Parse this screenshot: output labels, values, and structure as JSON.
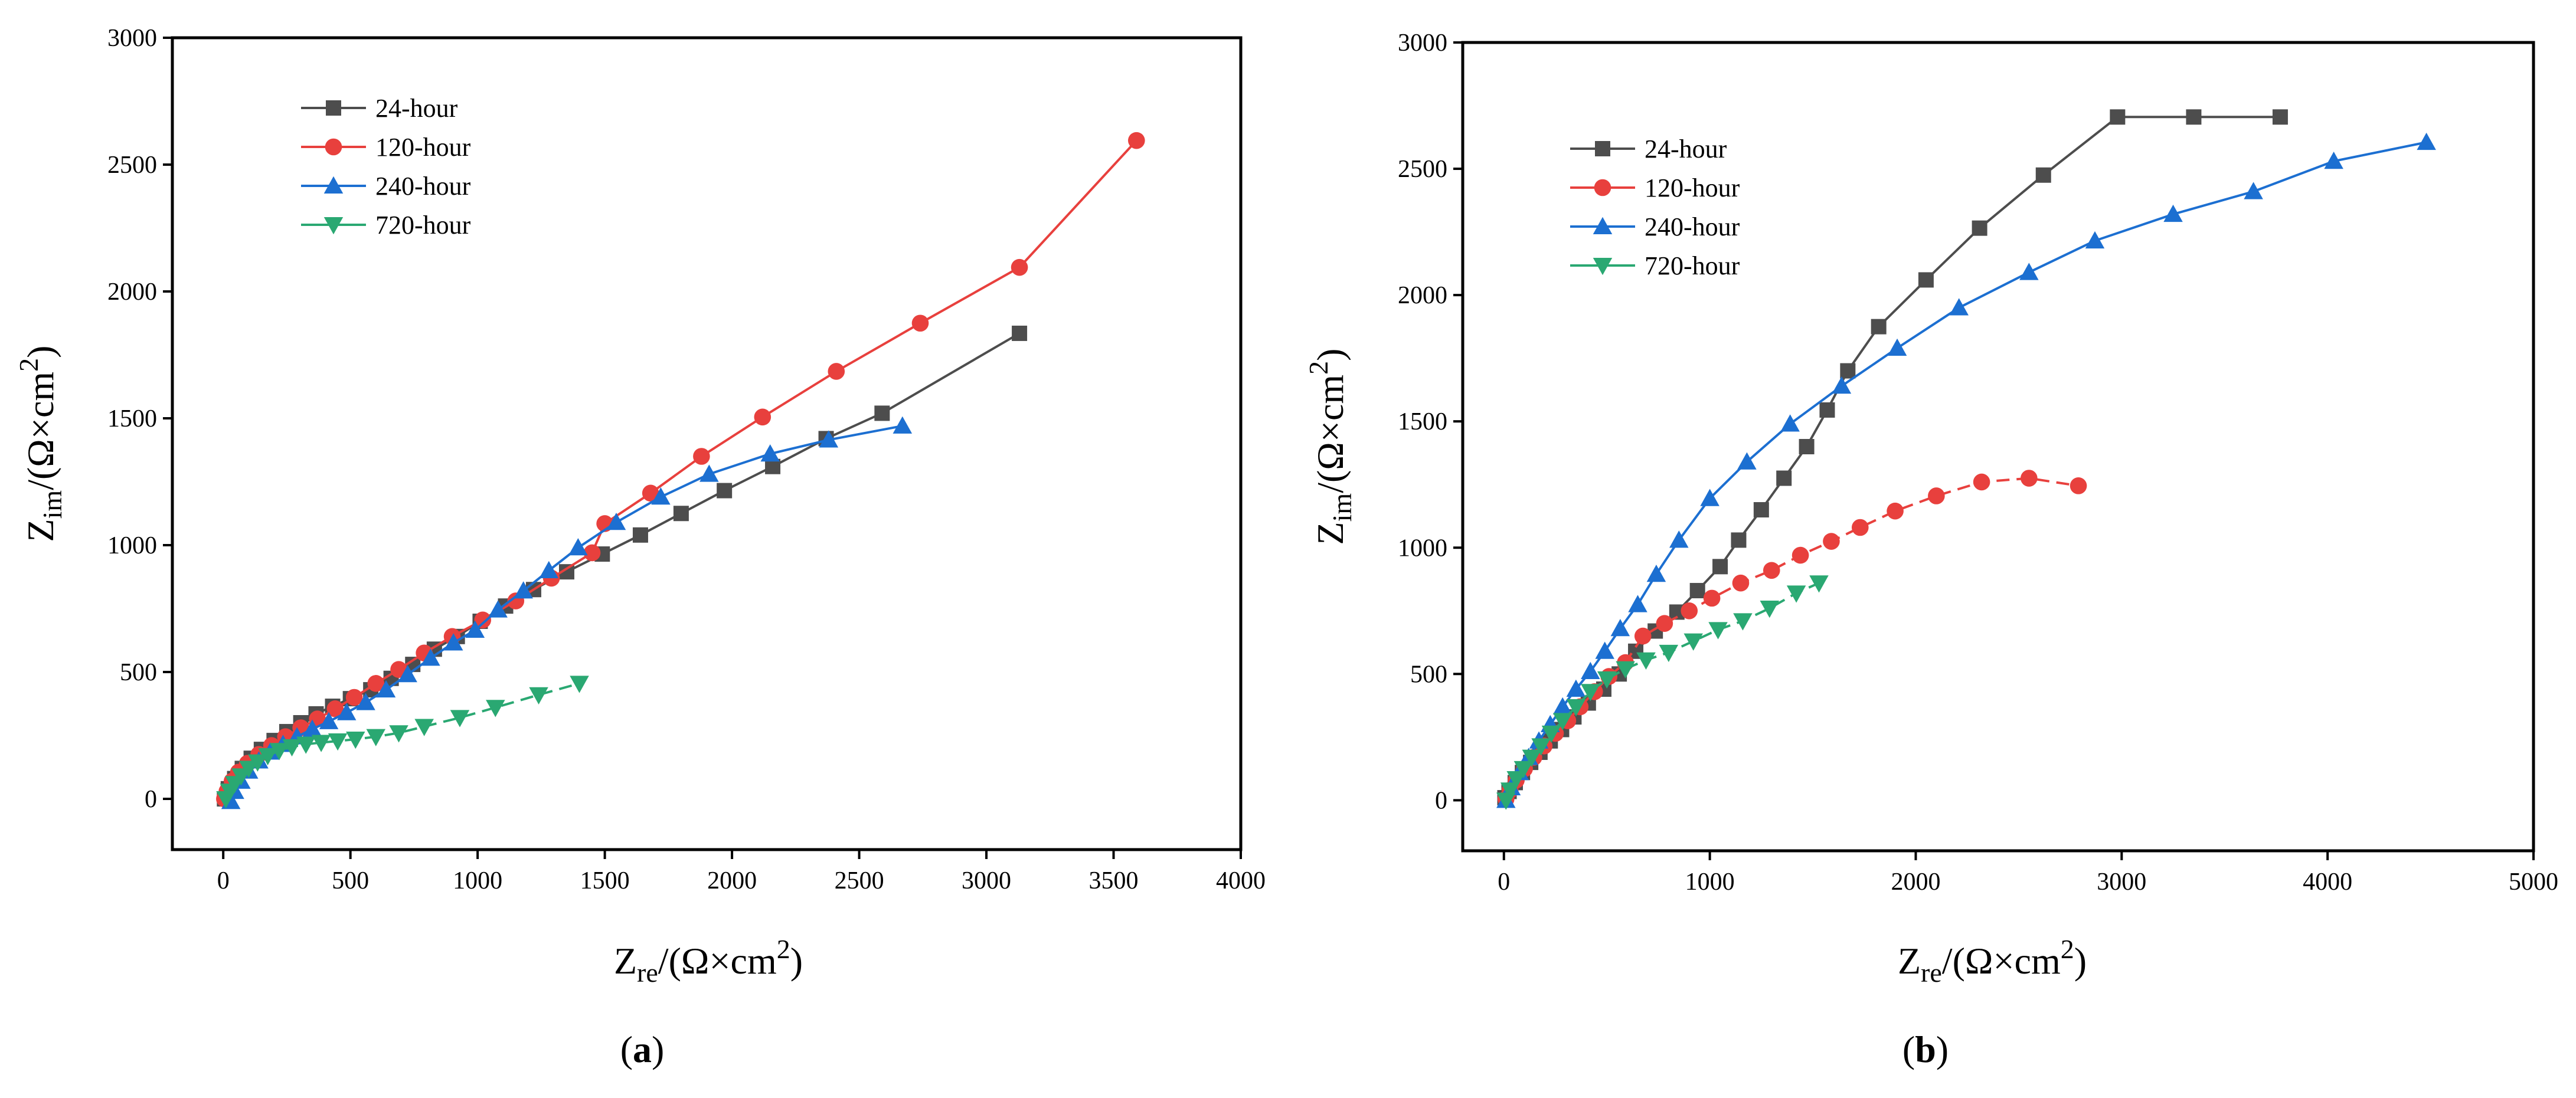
{
  "chart_data": [
    {
      "type": "line",
      "panel_label": "a",
      "xlabel": {
        "main": "Z",
        "sub": "re",
        "unit_pre": "/(Ω×cm",
        "sup": "2",
        "unit_post": ")"
      },
      "ylabel": {
        "main": "Z",
        "sub": "im",
        "unit_pre": "/(Ω×cm",
        "sup": "2",
        "unit_post": ")"
      },
      "xlim": [
        -200,
        4000
      ],
      "ylim": [
        -200,
        3000
      ],
      "xticks": [
        0,
        500,
        1000,
        1500,
        2000,
        2500,
        3000,
        3500,
        4000
      ],
      "yticks": [
        0,
        500,
        1000,
        1500,
        2000,
        2500,
        3000
      ],
      "legend_position": "top-left",
      "series": [
        {
          "name": "24-hour",
          "marker": "square",
          "color": "#4d4d4d",
          "dashed": false,
          "x": [
            5,
            20,
            45,
            75,
            110,
            150,
            200,
            250,
            305,
            365,
            430,
            500,
            580,
            660,
            745,
            830,
            920,
            1010,
            1110,
            1220,
            1350,
            1490,
            1640,
            1800,
            1970,
            2160,
            2370,
            2590,
            3130
          ],
          "y": [
            0,
            40,
            80,
            120,
            160,
            195,
            230,
            265,
            300,
            335,
            365,
            395,
            430,
            475,
            530,
            590,
            640,
            700,
            760,
            825,
            895,
            965,
            1040,
            1125,
            1215,
            1310,
            1420,
            1520,
            1835
          ]
        },
        {
          "name": "120-hour",
          "marker": "circle",
          "color": "#e8403d",
          "dashed": false,
          "x": [
            5,
            15,
            35,
            60,
            95,
            140,
            190,
            245,
            305,
            370,
            440,
            515,
            600,
            690,
            790,
            900,
            1020,
            1150,
            1290,
            1450,
            1500,
            1680,
            1880,
            2120,
            2410,
            2740,
            3130,
            3590
          ],
          "y": [
            0,
            30,
            70,
            105,
            140,
            175,
            210,
            245,
            280,
            315,
            355,
            400,
            455,
            510,
            575,
            640,
            705,
            780,
            870,
            970,
            1085,
            1205,
            1350,
            1505,
            1685,
            1875,
            2095,
            2595
          ]
        },
        {
          "name": "240-hour",
          "marker": "triangle-up",
          "color": "#1c6fd1",
          "dashed": false,
          "x": [
            30,
            45,
            70,
            100,
            140,
            185,
            235,
            290,
            350,
            415,
            485,
            560,
            640,
            725,
            815,
            905,
            990,
            1080,
            1180,
            1280,
            1395,
            1545,
            1720,
            1910,
            2150,
            2380,
            2670
          ],
          "y": [
            -10,
            30,
            70,
            110,
            150,
            185,
            215,
            245,
            275,
            305,
            340,
            380,
            430,
            490,
            555,
            615,
            665,
            745,
            820,
            900,
            990,
            1090,
            1190,
            1280,
            1360,
            1415,
            1470
          ]
        },
        {
          "name": "720-hour",
          "marker": "triangle-down",
          "color": "#2aa872",
          "dashed": true,
          "x": [
            10,
            25,
            45,
            70,
            100,
            135,
            175,
            220,
            270,
            325,
            385,
            450,
            520,
            600,
            690,
            790,
            930,
            1070,
            1240,
            1400
          ],
          "y": [
            0,
            30,
            60,
            90,
            120,
            145,
            170,
            190,
            205,
            215,
            222,
            228,
            235,
            245,
            260,
            285,
            320,
            360,
            410,
            455
          ]
        }
      ]
    },
    {
      "type": "line",
      "panel_label": "b",
      "xlabel": {
        "main": "Z",
        "sub": "re",
        "unit_pre": "/(Ω×cm",
        "sup": "2",
        "unit_post": ")"
      },
      "ylabel": {
        "main": "Z",
        "sub": "im",
        "unit_pre": "/(Ω×cm",
        "sup": "2",
        "unit_post": ")"
      },
      "xlim": [
        -200,
        5000
      ],
      "ylim": [
        -200,
        3000
      ],
      "xticks": [
        0,
        1000,
        2000,
        3000,
        4000,
        5000
      ],
      "yticks": [
        0,
        500,
        1000,
        1500,
        2000,
        2500,
        3000
      ],
      "legend_position": "top-left",
      "series": [
        {
          "name": "24-hour",
          "marker": "square",
          "color": "#4d4d4d",
          "dashed": false,
          "x": [
            5,
            25,
            55,
            90,
            130,
            175,
            225,
            280,
            340,
            410,
            485,
            560,
            640,
            735,
            840,
            940,
            1050,
            1140,
            1250,
            1360,
            1470,
            1570,
            1670,
            1820,
            2050,
            2310,
            2620,
            2980,
            3350,
            3770
          ],
          "y": [
            10,
            35,
            70,
            110,
            150,
            190,
            235,
            280,
            330,
            385,
            440,
            500,
            590,
            670,
            745,
            830,
            925,
            1030,
            1150,
            1275,
            1400,
            1545,
            1700,
            1875,
            2060,
            2265,
            2475,
            2705,
            2705,
            2705
          ]
        },
        {
          "name": "120-hour",
          "marker": "circle",
          "color": "#e8403d",
          "dashed": true,
          "x": [
            10,
            30,
            60,
            100,
            145,
            195,
            250,
            310,
            370,
            440,
            510,
            590,
            675,
            780,
            900,
            1010,
            1150,
            1300,
            1440,
            1590,
            1730,
            1900,
            2100,
            2320,
            2550,
            2790
          ],
          "y": [
            5,
            40,
            80,
            125,
            170,
            215,
            265,
            315,
            370,
            430,
            490,
            545,
            650,
            700,
            750,
            800,
            860,
            910,
            970,
            1025,
            1080,
            1145,
            1205,
            1260,
            1275,
            1245
          ]
        },
        {
          "name": "240-hour",
          "marker": "triangle-up",
          "color": "#1c6fd1",
          "dashed": false,
          "x": [
            10,
            35,
            75,
            120,
            170,
            225,
            285,
            350,
            420,
            490,
            565,
            650,
            740,
            850,
            1000,
            1180,
            1390,
            1640,
            1910,
            2210,
            2550,
            2870,
            3250,
            3640,
            4030,
            4480
          ],
          "y": [
            0,
            50,
            110,
            170,
            235,
            300,
            370,
            440,
            510,
            590,
            680,
            775,
            895,
            1030,
            1195,
            1340,
            1490,
            1640,
            1790,
            1950,
            2090,
            2215,
            2320,
            2410,
            2530,
            2605
          ]
        },
        {
          "name": "720-hour",
          "marker": "triangle-down",
          "color": "#2aa872",
          "dashed": true,
          "x": [
            10,
            30,
            60,
            95,
            135,
            180,
            230,
            285,
            350,
            420,
            500,
            590,
            690,
            800,
            920,
            1040,
            1160,
            1290,
            1420,
            1530
          ],
          "y": [
            0,
            40,
            85,
            125,
            170,
            215,
            265,
            315,
            370,
            430,
            480,
            520,
            555,
            585,
            630,
            675,
            710,
            760,
            820,
            860
          ]
        }
      ]
    }
  ]
}
